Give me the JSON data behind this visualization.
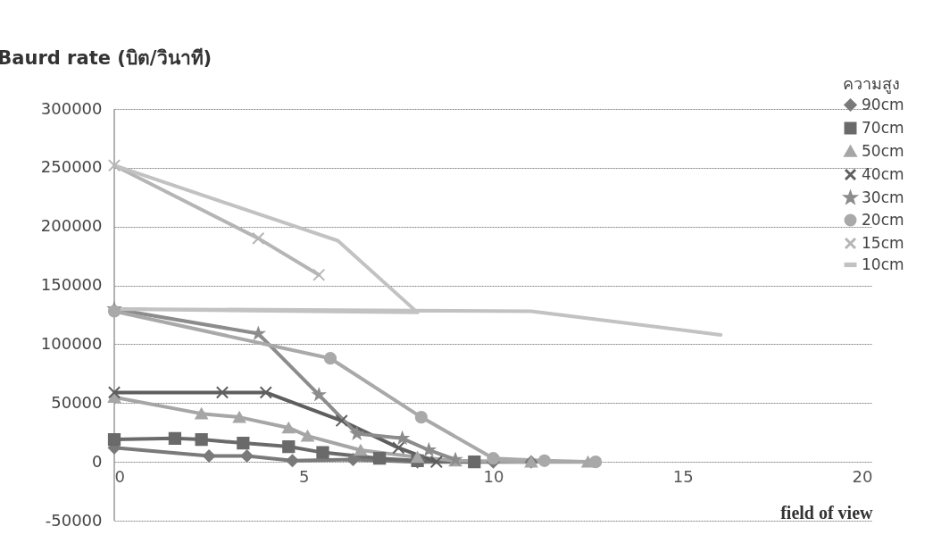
{
  "chart_data": {
    "type": "line",
    "title": "Baurd rate (บิต/วินาที)",
    "xlabel": "field of view",
    "legend_title": "ความสูง",
    "legend": "right",
    "grid": "y",
    "xlim": [
      0,
      20
    ],
    "xticks": [
      0,
      5,
      10,
      15,
      20
    ],
    "ylim": [
      -50000,
      300000
    ],
    "yticks": [
      -50000,
      0,
      50000,
      100000,
      150000,
      200000,
      250000,
      300000
    ],
    "series": [
      {
        "name": "90cm",
        "color": "#7a7a7a",
        "marker": "diamond",
        "x": [
          0,
          2.5,
          3.5,
          4.7,
          6.3,
          8,
          10,
          11
        ],
        "values": [
          12000,
          5000,
          5000,
          1000,
          2000,
          0,
          0,
          0
        ]
      },
      {
        "name": "70cm",
        "color": "#6a6a6a",
        "marker": "square",
        "x": [
          0,
          1.6,
          2.3,
          3.4,
          4.6,
          5.5,
          7,
          8,
          9.5
        ],
        "values": [
          19000,
          20000,
          19000,
          16000,
          13000,
          8000,
          3000,
          1000,
          0
        ]
      },
      {
        "name": "50cm",
        "color": "#a6a6a6",
        "marker": "triangle",
        "x": [
          0,
          2.3,
          3.3,
          4.6,
          5.1,
          6.5,
          8,
          9,
          11,
          12.5
        ],
        "values": [
          55000,
          41000,
          38000,
          29000,
          22000,
          10000,
          4000,
          1000,
          0,
          0
        ]
      },
      {
        "name": "40cm",
        "color": "#5e5e5e",
        "marker": "cross",
        "x": [
          0,
          2.85,
          4,
          6,
          7.5,
          8.5
        ],
        "values": [
          59000,
          59000,
          59000,
          35000,
          12000,
          0
        ]
      },
      {
        "name": "30cm",
        "color": "#8c8c8c",
        "marker": "star",
        "x": [
          0,
          3.8,
          5.4,
          6.4,
          7.6,
          8.3,
          9
        ],
        "values": [
          130000,
          109000,
          57000,
          24000,
          20000,
          10000,
          2000
        ]
      },
      {
        "name": "20cm",
        "color": "#a9a9a9",
        "marker": "circle",
        "x": [
          0,
          5.7,
          8.1,
          10,
          11.35,
          12.7
        ],
        "values": [
          128000,
          88000,
          38000,
          3000,
          1000,
          0
        ]
      },
      {
        "name": "15cm",
        "color": "#b5b5b5",
        "marker": "cross",
        "x": [
          0,
          3.8,
          5.4
        ],
        "values": [
          252000,
          190000,
          159000
        ]
      },
      {
        "name": "10cm",
        "color": "#c2c2c2",
        "marker": "none",
        "x": [
          0,
          5.9,
          8,
          0,
          11,
          16
        ],
        "values": [
          252000,
          188000,
          127000,
          130000,
          128000,
          108000
        ]
      }
    ]
  }
}
